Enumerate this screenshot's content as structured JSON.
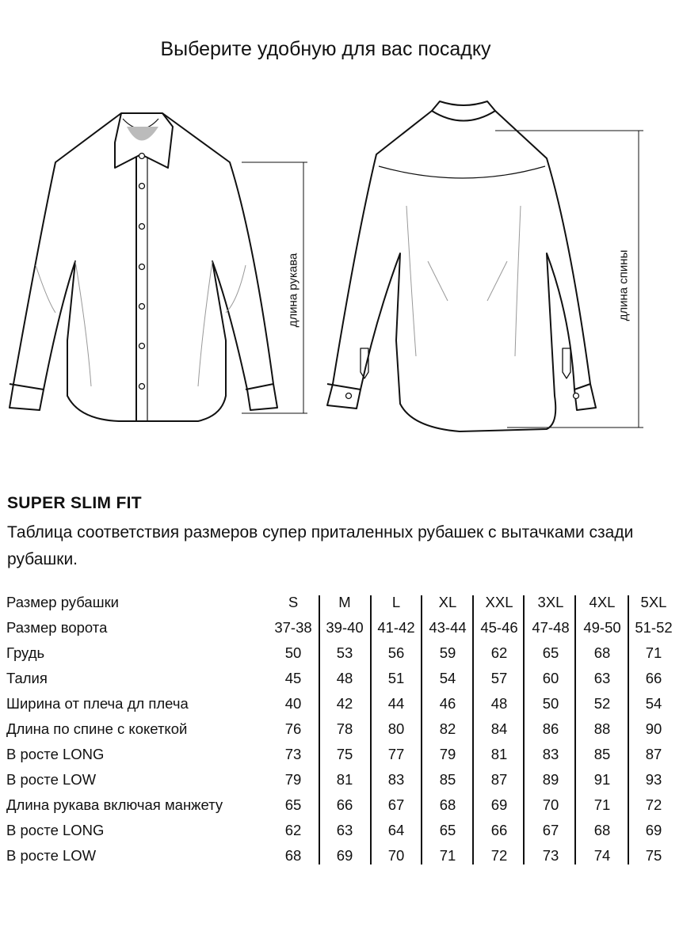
{
  "title": "Выберите удобную для вас посадку",
  "diagrams": {
    "front_label": "длина рукава",
    "back_label": "длина спины"
  },
  "fit_name": "SUPER SLIM FIT",
  "description": "Таблица соответствия размеров супер приталенных рубашек с вытачками сзади рубашки.",
  "table": {
    "sizes": [
      "S",
      "M",
      "L",
      "XL",
      "XXL",
      "3XL",
      "4XL",
      "5XL"
    ],
    "header_label": "Размер рубашки",
    "rows": [
      {
        "label": "Размер ворота",
        "values": [
          "37-38",
          "39-40",
          "41-42",
          "43-44",
          "45-46",
          "47-48",
          "49-50",
          "51-52"
        ]
      },
      {
        "label": "Грудь",
        "values": [
          "50",
          "53",
          "56",
          "59",
          "62",
          "65",
          "68",
          "71"
        ]
      },
      {
        "label": "Талия",
        "values": [
          "45",
          "48",
          "51",
          "54",
          "57",
          "60",
          "63",
          "66"
        ]
      },
      {
        "label": "Ширина от плеча дл плеча",
        "values": [
          "40",
          "42",
          "44",
          "46",
          "48",
          "50",
          "52",
          "54"
        ]
      },
      {
        "label": "Длина по спине с кокеткой",
        "values": [
          "76",
          "78",
          "80",
          "82",
          "84",
          "86",
          "88",
          "90"
        ]
      },
      {
        "label": "В росте LONG",
        "values": [
          "73",
          "75",
          "77",
          "79",
          "81",
          "83",
          "85",
          "87"
        ]
      },
      {
        "label": "В росте LOW",
        "values": [
          "79",
          "81",
          "83",
          "85",
          "87",
          "89",
          "91",
          "93"
        ]
      },
      {
        "label": "Длина рукава включая манжету",
        "values": [
          "65",
          "66",
          "67",
          "68",
          "69",
          "70",
          "71",
          "72"
        ]
      },
      {
        "label": "В росте LONG",
        "values": [
          "62",
          "63",
          "64",
          "65",
          "66",
          "67",
          "68",
          "69"
        ]
      },
      {
        "label": "В росте LOW",
        "values": [
          "68",
          "69",
          "70",
          "71",
          "72",
          "73",
          "74",
          "75"
        ]
      }
    ]
  }
}
